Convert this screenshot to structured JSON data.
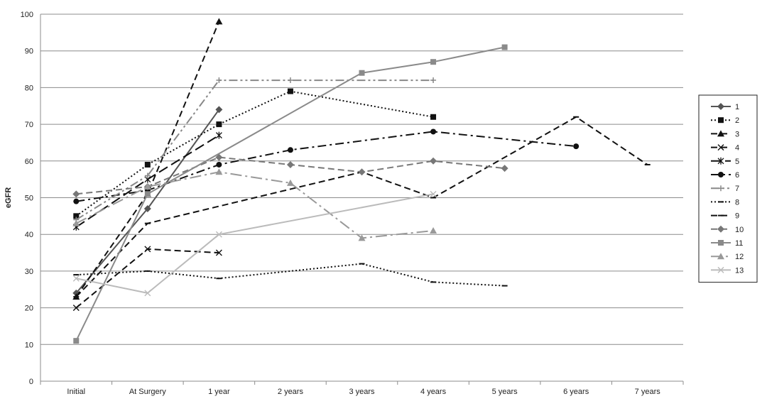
{
  "chart_data": {
    "type": "line",
    "title": "",
    "xlabel": "",
    "ylabel": "eGFR",
    "ylim": [
      0,
      100
    ],
    "yticks": [
      0,
      10,
      20,
      30,
      40,
      50,
      60,
      70,
      80,
      90,
      100
    ],
    "grid": "horizontal",
    "legend_position": "right",
    "categories": [
      "Initial",
      "At Surgery",
      "1 year",
      "2 years",
      "3 years",
      "4 years",
      "5 years",
      "6 years",
      "7 years"
    ],
    "series": [
      {
        "name": "1",
        "color": "#555555",
        "dash": "solid",
        "marker": "diamond",
        "values": [
          24,
          47,
          74,
          null,
          null,
          null,
          null,
          null,
          null
        ]
      },
      {
        "name": "2",
        "color": "#111111",
        "dash": "dot",
        "marker": "square",
        "values": [
          45,
          59,
          70,
          79,
          null,
          72,
          null,
          null,
          null
        ]
      },
      {
        "name": "3",
        "color": "#111111",
        "dash": "dash",
        "marker": "triangle",
        "values": [
          23,
          51,
          98,
          null,
          null,
          null,
          null,
          null,
          null
        ]
      },
      {
        "name": "4",
        "color": "#111111",
        "dash": "dash",
        "marker": "x",
        "values": [
          20,
          36,
          35,
          null,
          null,
          null,
          null,
          null,
          null
        ]
      },
      {
        "name": "5",
        "color": "#111111",
        "dash": "longdash",
        "marker": "star",
        "values": [
          42,
          55,
          67,
          null,
          null,
          null,
          null,
          null,
          null
        ]
      },
      {
        "name": "6",
        "color": "#111111",
        "dash": "dashdot",
        "marker": "circle",
        "values": [
          49,
          52,
          59,
          63,
          null,
          68,
          null,
          64,
          null
        ]
      },
      {
        "name": "7",
        "color": "#888888",
        "dash": "dashdotdot",
        "marker": "plus",
        "values": [
          44,
          56,
          82,
          82,
          null,
          82,
          null,
          null,
          null
        ]
      },
      {
        "name": "8",
        "color": "#111111",
        "dash": "dot",
        "marker": "dash",
        "values": [
          29,
          30,
          28,
          null,
          32,
          27,
          26,
          null,
          null
        ]
      },
      {
        "name": "9",
        "color": "#111111",
        "dash": "dash",
        "marker": "dash",
        "values": [
          23,
          43,
          null,
          null,
          57,
          50,
          null,
          72,
          59
        ]
      },
      {
        "name": "10",
        "color": "#777777",
        "dash": "dash",
        "marker": "diamond",
        "values": [
          51,
          53,
          61,
          59,
          57,
          60,
          58,
          null,
          null
        ]
      },
      {
        "name": "11",
        "color": "#8a8a8a",
        "dash": "solid",
        "marker": "square",
        "values": [
          11,
          51,
          null,
          null,
          84,
          87,
          91,
          null,
          null
        ]
      },
      {
        "name": "12",
        "color": "#999999",
        "dash": "longdashdot",
        "marker": "triangle",
        "values": [
          43,
          53,
          57,
          54,
          39,
          41,
          null,
          null,
          null
        ]
      },
      {
        "name": "13",
        "color": "#bbbbbb",
        "dash": "solid",
        "marker": "x",
        "values": [
          28,
          24,
          40,
          null,
          null,
          51,
          null,
          null,
          null
        ]
      }
    ]
  }
}
